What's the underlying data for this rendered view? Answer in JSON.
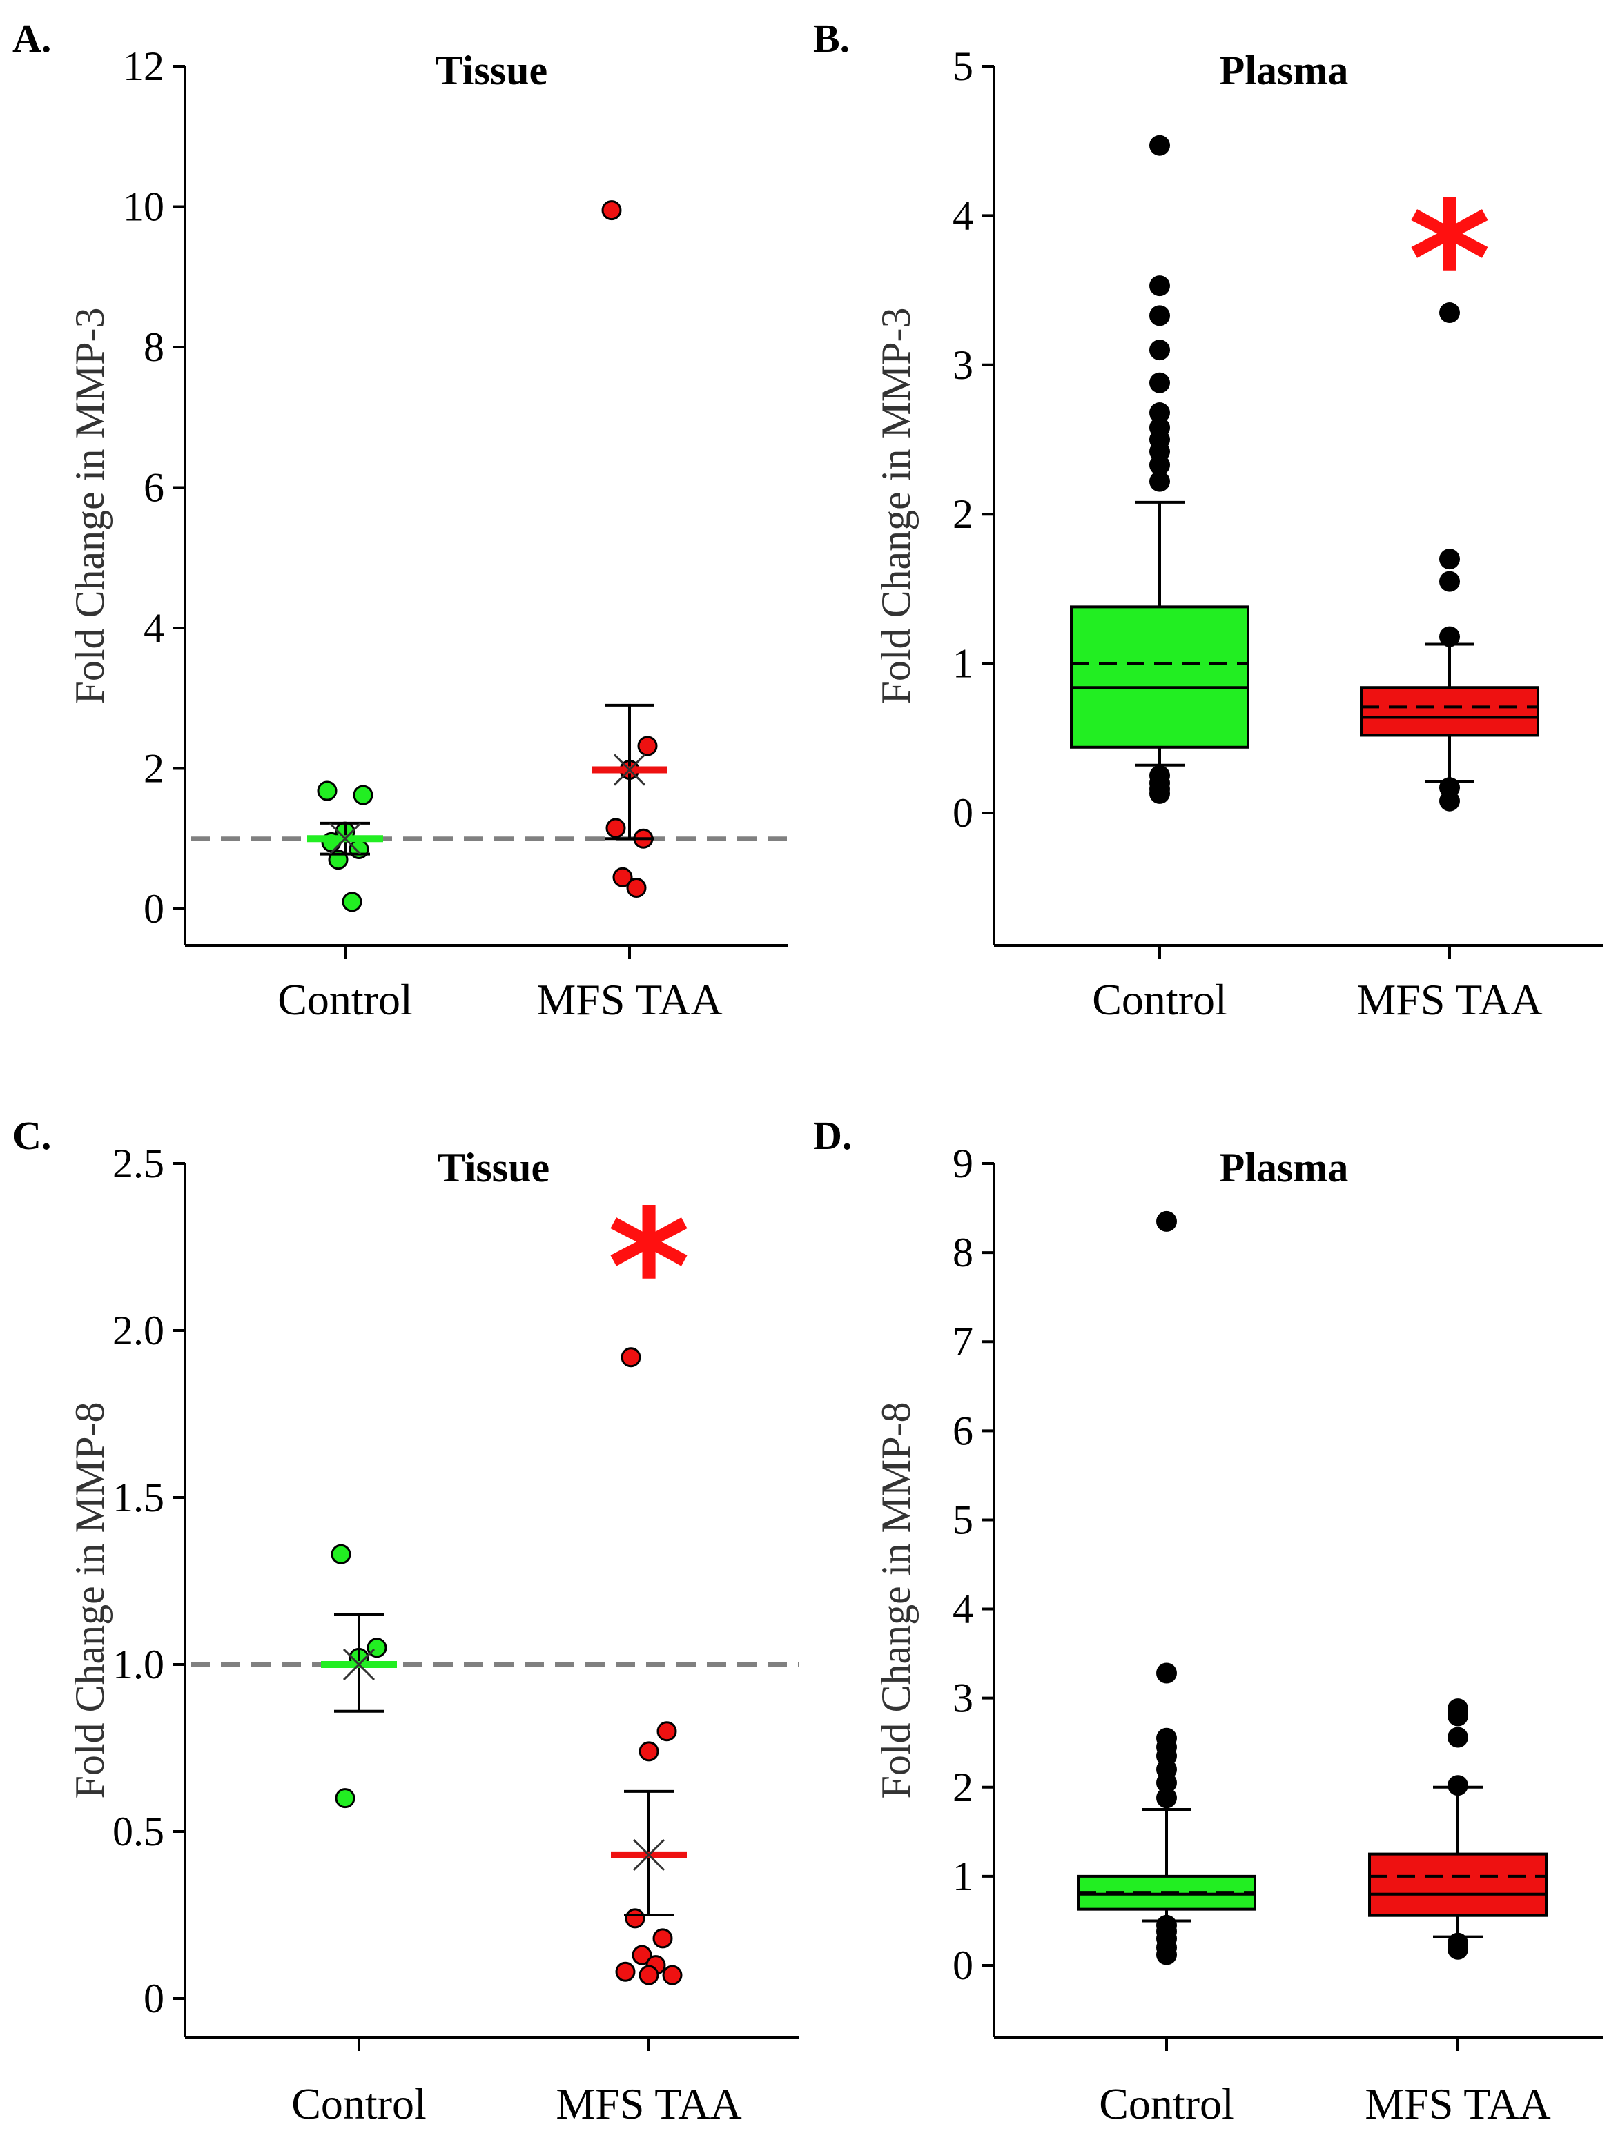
{
  "colors": {
    "control": "#22ee22",
    "mfs": "#ee1111",
    "outlier": "#000000",
    "ref": "#808080",
    "star": "#ff1010"
  },
  "chart_data": [
    {
      "panel": "A.",
      "title": "Tissue",
      "type": "scatter",
      "ylabel": "Fold Change in MMP-3",
      "categories": [
        "Control",
        "MFS TAA"
      ],
      "ylim": [
        -0.5,
        12
      ],
      "yticks": [
        0,
        2,
        4,
        6,
        8,
        10,
        12
      ],
      "tick_labels": [
        "0",
        "2",
        "4",
        "6",
        "8",
        "10",
        "12"
      ],
      "reference_line": 1,
      "groups": [
        {
          "name": "Control",
          "points": [
            1.68,
            1.62,
            1.1,
            0.95,
            0.85,
            0.7,
            0.1
          ],
          "mean": 1.0,
          "error_low": 0.78,
          "error_high": 1.22
        },
        {
          "name": "MFS TAA",
          "points": [
            9.95,
            2.32,
            1.98,
            1.15,
            1.0,
            0.45,
            0.3
          ],
          "mean": 1.98,
          "error_low": 1.0,
          "error_high": 2.9
        }
      ],
      "significance": false
    },
    {
      "panel": "B.",
      "title": "Plasma",
      "type": "box",
      "ylabel": "Fold Change in MMP-3",
      "categories": [
        "Control",
        "MFS TAA"
      ],
      "ylim": [
        -0.9,
        5
      ],
      "yticks": [
        0,
        1,
        2,
        3,
        4,
        5
      ],
      "tick_labels": [
        "0",
        "1",
        "2",
        "3",
        "4",
        "5"
      ],
      "groups": [
        {
          "name": "Control",
          "q1": 0.44,
          "median": 0.84,
          "q3": 1.38,
          "mean": 1.0,
          "whisker_low": 0.32,
          "whisker_high": 2.08,
          "outliers": [
            4.47,
            3.53,
            3.33,
            3.1,
            2.88,
            2.68,
            2.58,
            2.5,
            2.42,
            2.33,
            2.22,
            0.25,
            0.2,
            0.16,
            0.13
          ]
        },
        {
          "name": "MFS TAA",
          "q1": 0.52,
          "median": 0.64,
          "q3": 0.84,
          "mean": 0.71,
          "whisker_low": 0.21,
          "whisker_high": 1.13,
          "outliers": [
            3.35,
            1.7,
            1.55,
            1.18,
            0.17,
            0.08
          ]
        }
      ],
      "significance": true,
      "significance_value": 3.8
    },
    {
      "panel": "C.",
      "title": "Tissue",
      "type": "scatter",
      "ylabel": "Fold Change in MMP-8",
      "categories": [
        "Control",
        "MFS TAA"
      ],
      "ylim": [
        -0.1,
        2.5
      ],
      "yticks": [
        0,
        0.5,
        1.0,
        1.5,
        2.0,
        2.5
      ],
      "tick_labels": [
        "0",
        "0.5",
        "1.0",
        "1.5",
        "2.0",
        "2.5"
      ],
      "reference_line": 1,
      "groups": [
        {
          "name": "Control",
          "points": [
            1.33,
            1.05,
            1.02,
            0.6
          ],
          "mean": 1.0,
          "error_low": 0.86,
          "error_high": 1.15
        },
        {
          "name": "MFS TAA",
          "points": [
            1.92,
            0.8,
            0.74,
            0.24,
            0.18,
            0.13,
            0.1,
            0.08,
            0.07,
            0.07
          ],
          "mean": 0.43,
          "error_low": 0.25,
          "error_high": 0.62
        }
      ],
      "significance": true,
      "significance_value": 2.23
    },
    {
      "panel": "D.",
      "title": "Plasma",
      "type": "box",
      "ylabel": "Fold Change in MMP-8",
      "categories": [
        "Control",
        "MFS TAA"
      ],
      "ylim": [
        -0.9,
        9
      ],
      "yticks": [
        0,
        1,
        2,
        3,
        4,
        5,
        6,
        7,
        8,
        9
      ],
      "tick_labels": [
        "0",
        "1",
        "2",
        "3",
        "4",
        "5",
        "6",
        "7",
        "8",
        "9"
      ],
      "groups": [
        {
          "name": "Control",
          "q1": 0.63,
          "median": 0.8,
          "q3": 1.0,
          "mean": 0.82,
          "whisker_low": 0.5,
          "whisker_high": 1.75,
          "outliers": [
            8.35,
            3.28,
            2.55,
            2.45,
            2.35,
            2.2,
            2.05,
            1.88,
            0.45,
            0.38,
            0.3,
            0.2,
            0.12
          ]
        },
        {
          "name": "MFS TAA",
          "q1": 0.56,
          "median": 0.8,
          "q3": 1.25,
          "mean": 1.0,
          "whisker_low": 0.32,
          "whisker_high": 2.0,
          "outliers": [
            2.88,
            2.8,
            2.56,
            2.02,
            0.25,
            0.18
          ]
        }
      ],
      "significance": false
    }
  ]
}
